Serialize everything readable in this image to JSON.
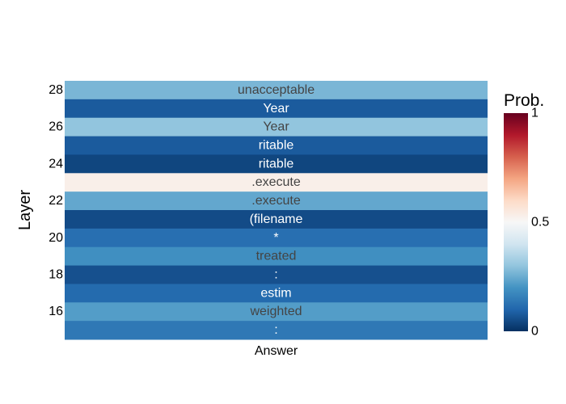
{
  "chart_data": {
    "type": "heatmap",
    "xlabel": "",
    "ylabel": "Layer",
    "x_categories": [
      "Answer"
    ],
    "y_tick_labels": [
      "28",
      "26",
      "24",
      "22",
      "20",
      "18",
      "16"
    ],
    "rows": [
      {
        "layer": 28,
        "token": "unacceptable",
        "prob": 0.27
      },
      {
        "layer": 27,
        "token": "Year",
        "prob": 0.08
      },
      {
        "layer": 26,
        "token": "Year",
        "prob": 0.3
      },
      {
        "layer": 25,
        "token": "ritable",
        "prob": 0.08
      },
      {
        "layer": 24,
        "token": "ritable",
        "prob": 0.04
      },
      {
        "layer": 23,
        "token": ".execute",
        "prob": 0.53
      },
      {
        "layer": 22,
        "token": ".execute",
        "prob": 0.24
      },
      {
        "layer": 21,
        "token": "(filename",
        "prob": 0.05
      },
      {
        "layer": 20,
        "token": "*",
        "prob": 0.12
      },
      {
        "layer": 19,
        "token": "treated",
        "prob": 0.19
      },
      {
        "layer": 18,
        "token": ":",
        "prob": 0.06
      },
      {
        "layer": 17,
        "token": "estim",
        "prob": 0.11
      },
      {
        "layer": 16,
        "token": "weighted",
        "prob": 0.22
      },
      {
        "layer": 15,
        "token": ":",
        "prob": 0.14
      }
    ],
    "colorbar": {
      "title": "Prob.",
      "range": [
        0,
        1
      ],
      "tick_labels": [
        "0",
        "0.5",
        "1"
      ],
      "tick_values": [
        0,
        0.5,
        1
      ],
      "colorscale": "RdBu"
    }
  }
}
